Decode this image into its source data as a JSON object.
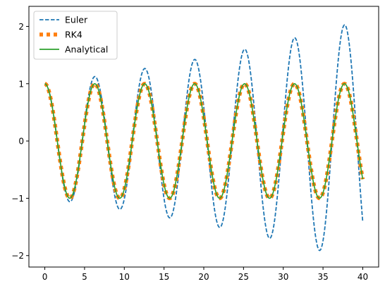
{
  "chart_data": {
    "type": "line",
    "title": "",
    "xlabel": "",
    "ylabel": "",
    "xlim": [
      -2,
      42
    ],
    "ylim": [
      -2.2,
      2.35
    ],
    "xticks": [
      0,
      5,
      10,
      15,
      20,
      25,
      30,
      35,
      40
    ],
    "yticks": [
      -2,
      -1,
      0,
      1,
      2
    ],
    "grid": false,
    "legend_position": "top-left",
    "series": [
      {
        "name": "Euler",
        "style": "dashed",
        "color": "#1f77b4",
        "model": {
          "kind": "growing_cosine",
          "omega": 1.0,
          "growth_per_unit_time": 0.01875,
          "t_start": 0,
          "t_end": 40,
          "samples": 400
        },
        "points": [
          [
            0,
            1.0
          ],
          [
            3.14,
            -1.05
          ],
          [
            6.28,
            1.12
          ],
          [
            9.42,
            -1.2
          ],
          [
            12.57,
            1.27
          ],
          [
            15.71,
            -1.35
          ],
          [
            18.85,
            1.45
          ],
          [
            21.99,
            -1.55
          ],
          [
            25.13,
            1.65
          ],
          [
            28.27,
            -1.75
          ],
          [
            31.42,
            1.87
          ],
          [
            34.56,
            -2.0
          ],
          [
            37.7,
            2.12
          ],
          [
            40.0,
            -1.43
          ]
        ]
      },
      {
        "name": "RK4",
        "style": "dotted",
        "color": "#ff7f0e",
        "model": {
          "kind": "cosine",
          "omega": 1.0,
          "t_start": 0,
          "t_end": 40,
          "samples": 400
        }
      },
      {
        "name": "Analytical",
        "style": "solid",
        "color": "#2ca02c",
        "model": {
          "kind": "cosine",
          "omega": 1.0,
          "t_start": 0,
          "t_end": 40,
          "samples": 400
        }
      }
    ]
  }
}
